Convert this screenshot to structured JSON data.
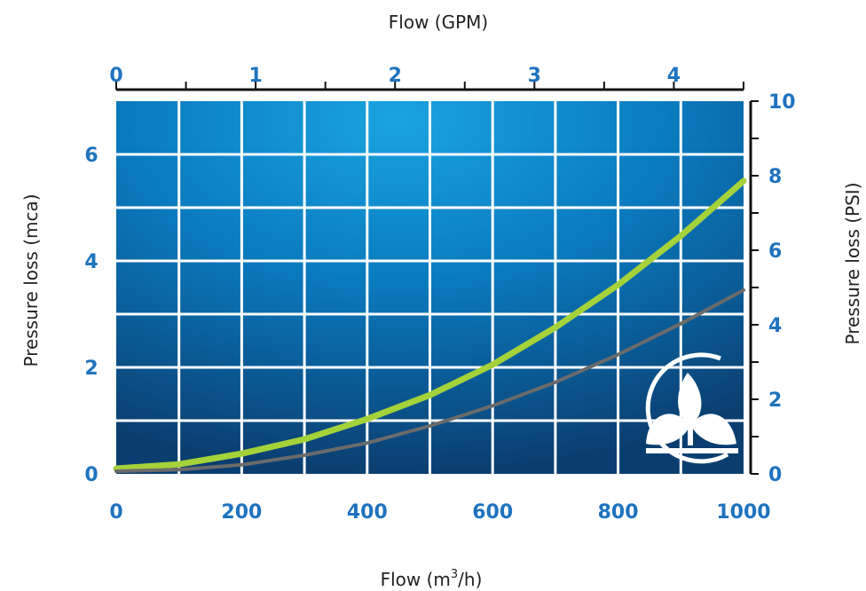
{
  "chart_data": {
    "type": "line",
    "xlabel_top": "Flow (GPM)",
    "xlabel_bottom": "Flow  (m",
    "xlabel_bottom_sup": "3",
    "xlabel_bottom_tail": "/h)",
    "ylabel_left": "Pressure loss (mca)",
    "ylabel_right": "Pressure loss (PSI)",
    "x_bottom_ticks": [
      "0",
      "200",
      "400",
      "600",
      "800",
      "1000"
    ],
    "x_top_ticks": [
      "0",
      "1",
      "2",
      "3",
      "4"
    ],
    "y_left_ticks": [
      "0",
      "2",
      "4",
      "6"
    ],
    "y_right_ticks": [
      "0",
      "2",
      "4",
      "6",
      "8",
      "10"
    ],
    "xlim": [
      0,
      1000
    ],
    "ylim": [
      0,
      7
    ],
    "grid": true,
    "series": [
      {
        "color": "#a5d13a",
        "x": [
          0,
          100,
          200,
          300,
          400,
          500,
          600,
          700,
          800,
          900,
          1000
        ],
        "y": [
          0.1,
          0.18,
          0.38,
          0.65,
          1.03,
          1.48,
          2.05,
          2.75,
          3.55,
          4.47,
          5.5
        ]
      },
      {
        "color": "#6b6b6b",
        "x": [
          0,
          100,
          200,
          300,
          400,
          500,
          600,
          700,
          800,
          900,
          1000
        ],
        "y": [
          0.05,
          0.08,
          0.17,
          0.35,
          0.58,
          0.9,
          1.28,
          1.72,
          2.24,
          2.82,
          3.45
        ]
      }
    ],
    "colors": {
      "plot_bg": "#0d5a8f",
      "tick_label": "#1e73be",
      "grid": "#ffffff"
    }
  },
  "logo": {
    "icon": "flower-logo-icon"
  }
}
